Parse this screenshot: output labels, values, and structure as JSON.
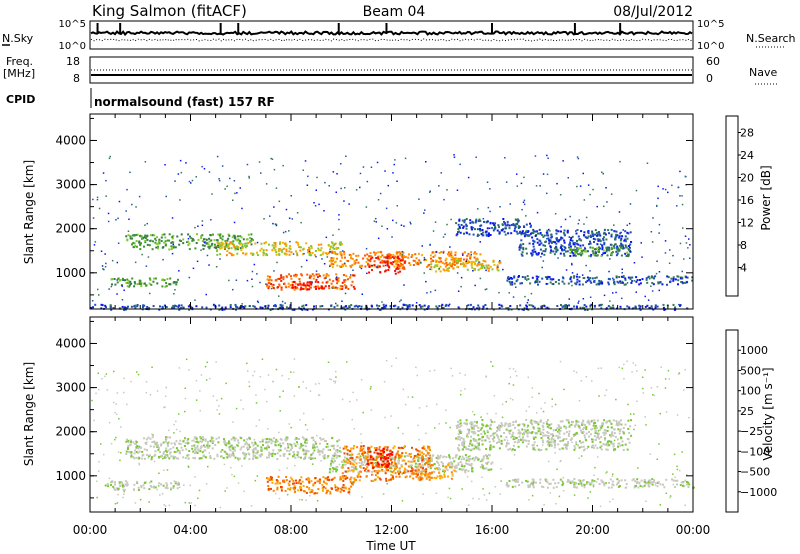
{
  "header": {
    "station": "King Salmon (fitACF)",
    "beam": "Beam 04",
    "date": "08/Jul/2012"
  },
  "summary_panels": {
    "nsky": {
      "label": "N.Sky",
      "tick_top": "10^5",
      "tick_bottom": "10^0",
      "right_label": "N.Search",
      "right_tick_top": "10^5",
      "right_tick_bottom": "10^0"
    },
    "freq": {
      "label_line1": "Freq.",
      "label_line2": "[MHz]",
      "tick_top": "18",
      "tick_bottom": "8",
      "right_label": "Nave",
      "right_tick_top": "60",
      "right_tick_bottom": "0"
    },
    "cpid": {
      "label": "CPID",
      "text": "normalsound (fast) 157 RF"
    }
  },
  "chart_data": [
    {
      "type": "heatmap",
      "name": "power",
      "ylabel": "Slant Range [km]",
      "ylim": [
        180,
        4600
      ],
      "y_ticks": [
        "1000",
        "2000",
        "3000",
        "4000"
      ],
      "colorbar": {
        "label": "Power [dB]",
        "ticks": [
          "4",
          "8",
          "12",
          "16",
          "20",
          "24",
          "28"
        ],
        "colors": [
          "#0a14f0",
          "#1e50b4",
          "#327850",
          "#3c9628",
          "#82c832",
          "#f0b400",
          "#ff8c00",
          "#ff5a00",
          "#f01e0a",
          "#ff0000"
        ]
      },
      "bands": [
        {
          "t0": 1.4,
          "t1": 6.5,
          "r0": 1550,
          "r1": 1900,
          "level": 3
        },
        {
          "t0": 5.0,
          "t1": 10.0,
          "r0": 1420,
          "r1": 1720,
          "level": 5
        },
        {
          "t0": 9.5,
          "t1": 15.5,
          "r0": 1150,
          "r1": 1500,
          "level": 6
        },
        {
          "t0": 11.0,
          "t1": 12.5,
          "r0": 1000,
          "r1": 1400,
          "level": 8
        },
        {
          "t0": 13.5,
          "t1": 16.3,
          "r0": 1050,
          "r1": 1300,
          "level": 5
        },
        {
          "t0": 7.0,
          "t1": 10.5,
          "r0": 640,
          "r1": 1000,
          "level": 7
        },
        {
          "t0": 8.0,
          "t1": 9.5,
          "r0": 640,
          "r1": 820,
          "level": 9
        },
        {
          "t0": 0.8,
          "t1": 3.5,
          "r0": 700,
          "r1": 900,
          "level": 3
        },
        {
          "t0": 14.5,
          "t1": 17.5,
          "r0": 1850,
          "r1": 2250,
          "level": 1
        },
        {
          "t0": 17.0,
          "t1": 21.5,
          "r0": 1400,
          "r1": 2000,
          "level": 1
        },
        {
          "t0": 19.0,
          "t1": 21.5,
          "r0": 1400,
          "r1": 1600,
          "level": 3
        },
        {
          "t0": 16.5,
          "t1": 24.0,
          "r0": 750,
          "r1": 950,
          "level": 1
        },
        {
          "t0": 0.0,
          "t1": 24.0,
          "r0": 180,
          "r1": 300,
          "level": 1
        }
      ]
    },
    {
      "type": "heatmap",
      "name": "velocity",
      "ylabel": "Slant Range [km]",
      "ylim": [
        180,
        4600
      ],
      "y_ticks": [
        "1000",
        "2000",
        "3000",
        "4000"
      ],
      "colorbar": {
        "label": "Velocity [m s⁻¹]",
        "ticks": [
          "1000",
          "500",
          "100",
          "25",
          "−25",
          "−100",
          "−500",
          "−1000"
        ],
        "colors": [
          "#1428c8",
          "#2850a0",
          "#3c8c3c",
          "#78c832",
          "#c8c8c0",
          "#c8c8c0",
          "#ffaa00",
          "#ff8200",
          "#f04600",
          "#ff0000"
        ]
      },
      "bands": [
        {
          "t0": 1.4,
          "t1": 10.0,
          "r0": 1400,
          "r1": 1900,
          "level": 4
        },
        {
          "t0": 9.5,
          "t1": 16.0,
          "r0": 1100,
          "r1": 1500,
          "level": 4
        },
        {
          "t0": 7.0,
          "t1": 10.5,
          "r0": 620,
          "r1": 1000,
          "level": 7
        },
        {
          "t0": 10.0,
          "t1": 13.5,
          "r0": 900,
          "r1": 1700,
          "level": 7
        },
        {
          "t0": 11.0,
          "t1": 12.0,
          "r0": 1200,
          "r1": 1650,
          "level": 9
        },
        {
          "t0": 13.0,
          "t1": 14.5,
          "r0": 950,
          "r1": 1300,
          "level": 6
        },
        {
          "t0": 14.5,
          "t1": 21.5,
          "r0": 1600,
          "r1": 2300,
          "level": 4
        },
        {
          "t0": 16.5,
          "t1": 24.0,
          "r0": 750,
          "r1": 950,
          "level": 4
        },
        {
          "t0": 0.5,
          "t1": 3.5,
          "r0": 700,
          "r1": 900,
          "level": 4
        }
      ]
    }
  ],
  "x_axis": {
    "label": "Time UT",
    "ticks": [
      "00:00",
      "04:00",
      "08:00",
      "12:00",
      "16:00",
      "20:00",
      "00:00"
    ]
  }
}
